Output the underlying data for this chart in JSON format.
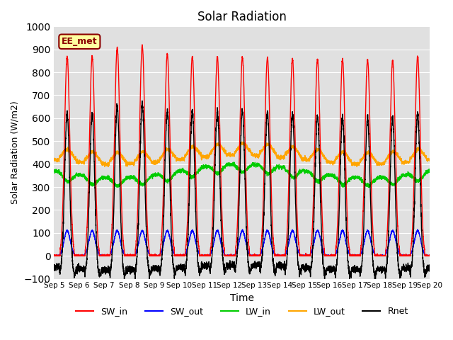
{
  "title": "Solar Radiation",
  "ylabel": "Solar Radiation (W/m2)",
  "xlabel": "Time",
  "ylim": [
    -100,
    1000
  ],
  "yticks": [
    -100,
    0,
    100,
    200,
    300,
    400,
    500,
    600,
    700,
    800,
    900,
    1000
  ],
  "annotation": "EE_met",
  "bg_color": "#e0e0e0",
  "fig_color": "#ffffff",
  "series": {
    "SW_in": {
      "color": "#ff0000",
      "lw": 1.0
    },
    "SW_out": {
      "color": "#0000ff",
      "lw": 1.0
    },
    "LW_in": {
      "color": "#00cc00",
      "lw": 1.0
    },
    "LW_out": {
      "color": "#ffa500",
      "lw": 1.0
    },
    "Rnet": {
      "color": "#000000",
      "lw": 1.0
    }
  },
  "n_days": 15,
  "start_day": 5,
  "pts_per_day": 288
}
